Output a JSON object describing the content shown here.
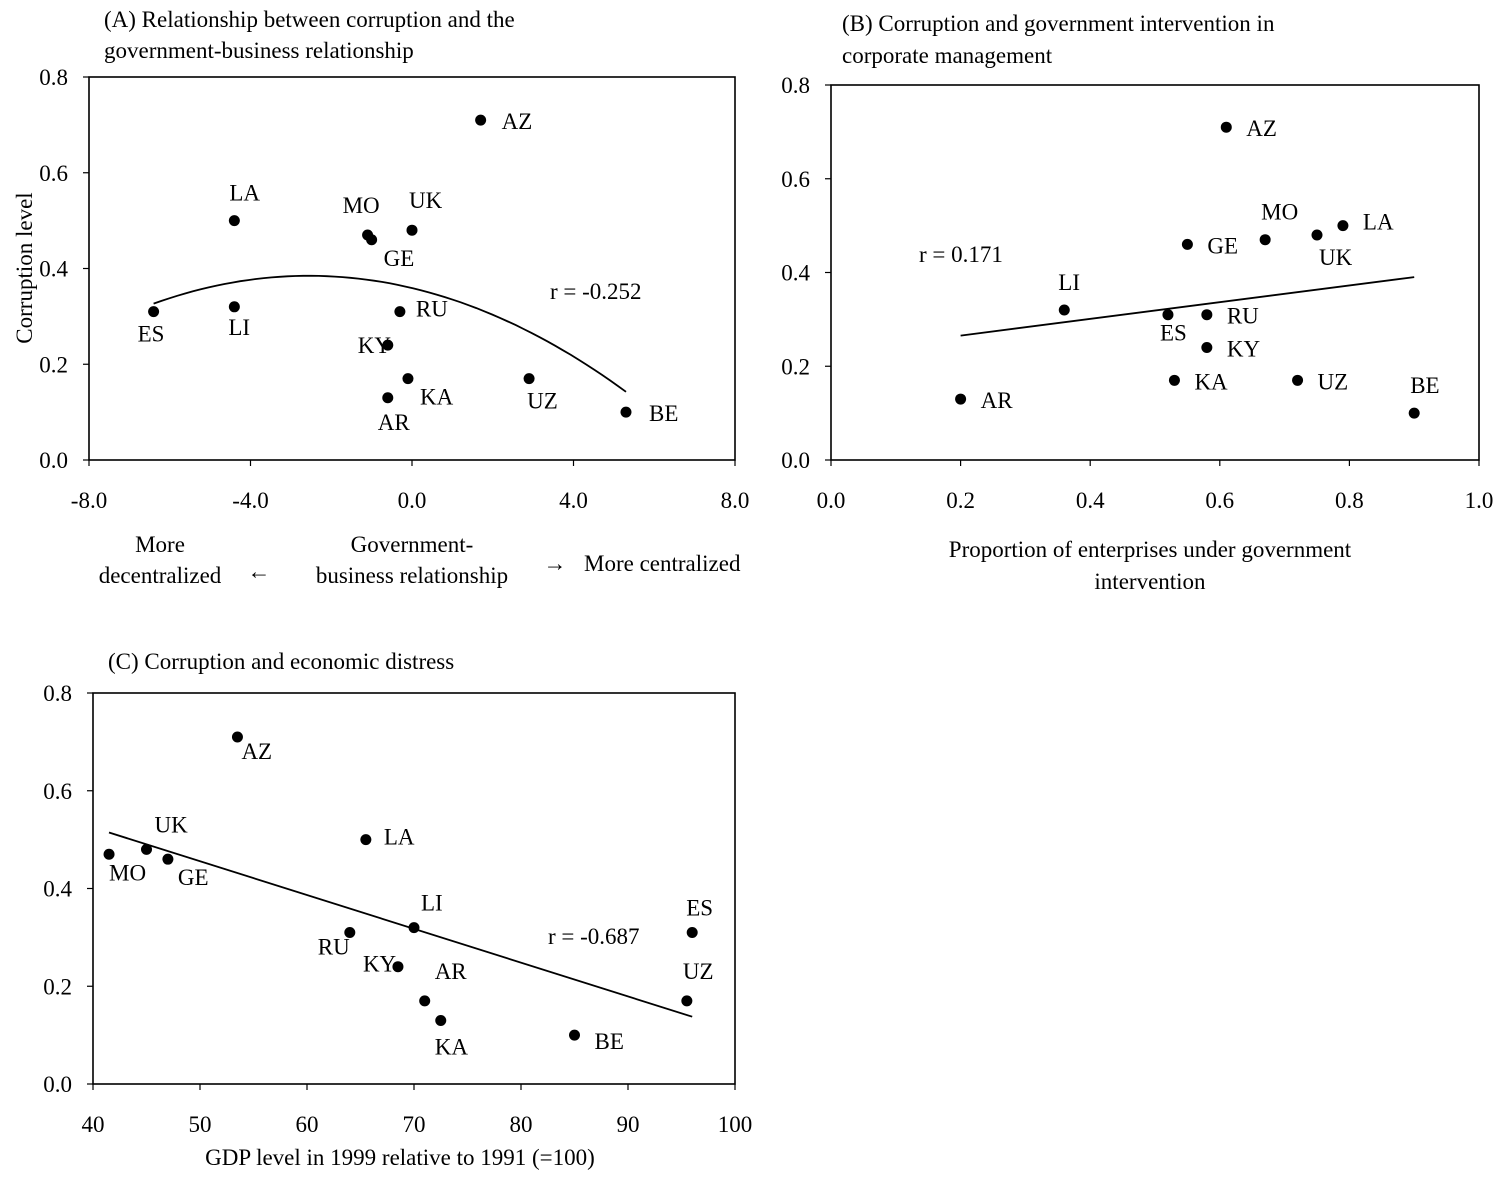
{
  "chart_data": [
    {
      "id": "A",
      "type": "scatter",
      "title": "(A) Relationship between corruption and the government-business relationship",
      "title_lines": [
        "(A) Relationship between corruption and the",
        "government-business relationship"
      ],
      "ylabel": "Corruption level",
      "xlabel_lines": [
        "Government-",
        "business relationship"
      ],
      "xlabel_left_lines": [
        "More",
        "decentralized"
      ],
      "xlabel_right": "More centralized",
      "arrow_left": "←",
      "arrow_right": "→",
      "xlim": [
        -8,
        8
      ],
      "ylim": [
        0,
        0.8
      ],
      "xticks": [
        -8,
        -4,
        0,
        4,
        8
      ],
      "xtick_labels": [
        "-8.0",
        "-4.0",
        "0.0",
        "4.0",
        "8.0"
      ],
      "yticks": [
        0,
        0.2,
        0.4,
        0.6,
        0.8
      ],
      "ytick_labels": [
        "0.0",
        "0.2",
        "0.4",
        "0.6",
        "0.8"
      ],
      "grid": false,
      "points": [
        {
          "label": "AZ",
          "x": 1.7,
          "y": 0.71
        },
        {
          "label": "LA",
          "x": -4.4,
          "y": 0.5
        },
        {
          "label": "MO",
          "x": -1.1,
          "y": 0.47
        },
        {
          "label": "UK",
          "x": 0.0,
          "y": 0.48
        },
        {
          "label": "GE",
          "x": -1.0,
          "y": 0.46
        },
        {
          "label": "ES",
          "x": -6.4,
          "y": 0.31
        },
        {
          "label": "LI",
          "x": -4.4,
          "y": 0.32
        },
        {
          "label": "RU",
          "x": -0.3,
          "y": 0.31
        },
        {
          "label": "KY",
          "x": -0.6,
          "y": 0.24
        },
        {
          "label": "KA",
          "x": -0.1,
          "y": 0.17
        },
        {
          "label": "AR",
          "x": -0.6,
          "y": 0.13
        },
        {
          "label": "UZ",
          "x": 2.9,
          "y": 0.17
        },
        {
          "label": "BE",
          "x": 5.3,
          "y": 0.1
        }
      ],
      "trend": {
        "kind": "quadratic",
        "x_range": [
          -6.4,
          5.3
        ]
      },
      "annotation": "r = -0.252"
    },
    {
      "id": "B",
      "type": "scatter",
      "title": "(B) Corruption and government intervention in corporate management",
      "title_lines": [
        "(B) Corruption and government intervention in",
        "corporate management"
      ],
      "xlabel_lines": [
        "Proportion of enterprises under government",
        "intervention"
      ],
      "xlim": [
        0,
        1
      ],
      "ylim": [
        0,
        0.8
      ],
      "xticks": [
        0,
        0.2,
        0.4,
        0.6,
        0.8,
        1.0
      ],
      "xtick_labels": [
        "0.0",
        "0.2",
        "0.4",
        "0.6",
        "0.8",
        "1.0"
      ],
      "yticks": [
        0,
        0.2,
        0.4,
        0.6,
        0.8
      ],
      "ytick_labels": [
        "0.0",
        "0.2",
        "0.4",
        "0.6",
        "0.8"
      ],
      "grid": false,
      "points": [
        {
          "label": "AZ",
          "x": 0.61,
          "y": 0.71
        },
        {
          "label": "MO",
          "x": 0.67,
          "y": 0.47
        },
        {
          "label": "LA",
          "x": 0.79,
          "y": 0.5
        },
        {
          "label": "UK",
          "x": 0.75,
          "y": 0.48
        },
        {
          "label": "GE",
          "x": 0.55,
          "y": 0.46
        },
        {
          "label": "LI",
          "x": 0.36,
          "y": 0.32
        },
        {
          "label": "ES",
          "x": 0.52,
          "y": 0.31
        },
        {
          "label": "RU",
          "x": 0.58,
          "y": 0.31
        },
        {
          "label": "KY",
          "x": 0.58,
          "y": 0.24
        },
        {
          "label": "KA",
          "x": 0.53,
          "y": 0.17
        },
        {
          "label": "UZ",
          "x": 0.72,
          "y": 0.17
        },
        {
          "label": "AR",
          "x": 0.2,
          "y": 0.13
        },
        {
          "label": "BE",
          "x": 0.9,
          "y": 0.1
        }
      ],
      "trend": {
        "kind": "linear",
        "x_range": [
          0.2,
          0.9
        ]
      },
      "annotation": "r = 0.171"
    },
    {
      "id": "C",
      "type": "scatter",
      "title": "(C) Corruption and economic distress",
      "title_lines": [
        "(C) Corruption and economic distress"
      ],
      "xlabel_lines": [
        "GDP level in 1999 relative to 1991 (=100)"
      ],
      "xlim": [
        40,
        100
      ],
      "ylim": [
        0,
        0.8
      ],
      "xticks": [
        40,
        50,
        60,
        70,
        80,
        90,
        100
      ],
      "xtick_labels": [
        "40",
        "50",
        "60",
        "70",
        "80",
        "90",
        "100"
      ],
      "yticks": [
        0,
        0.2,
        0.4,
        0.6,
        0.8
      ],
      "ytick_labels": [
        "0.0",
        "0.2",
        "0.4",
        "0.6",
        "0.8"
      ],
      "grid": false,
      "points": [
        {
          "label": "AZ",
          "x": 53.5,
          "y": 0.71
        },
        {
          "label": "UK",
          "x": 45,
          "y": 0.48
        },
        {
          "label": "MO",
          "x": 41.5,
          "y": 0.47
        },
        {
          "label": "GE",
          "x": 47,
          "y": 0.46
        },
        {
          "label": "LA",
          "x": 65.5,
          "y": 0.5
        },
        {
          "label": "LI",
          "x": 70,
          "y": 0.32
        },
        {
          "label": "RU",
          "x": 64,
          "y": 0.31
        },
        {
          "label": "KY",
          "x": 68.5,
          "y": 0.24
        },
        {
          "label": "AR",
          "x": 71,
          "y": 0.17
        },
        {
          "label": "KA",
          "x": 72.5,
          "y": 0.13
        },
        {
          "label": "BE",
          "x": 85,
          "y": 0.1
        },
        {
          "label": "ES",
          "x": 96,
          "y": 0.31
        },
        {
          "label": "UZ",
          "x": 95.5,
          "y": 0.17
        }
      ],
      "trend": {
        "kind": "linear",
        "x_range": [
          41.5,
          96
        ]
      },
      "annotation": "r = -0.687"
    }
  ]
}
